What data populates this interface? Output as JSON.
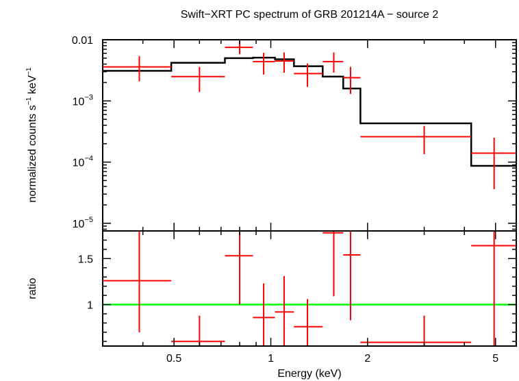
{
  "chart_data": [
    {
      "type": "scatter",
      "title": "Swift−XRT PC spectrum of GRB 201214A − source 2",
      "ylabel_parts": [
        "normalized counts s",
        "−1",
        " keV",
        "−1"
      ],
      "xscale": "log",
      "yscale": "log",
      "xlim": [
        0.3,
        5.8
      ],
      "ylim": [
        7.5e-06,
        0.01
      ],
      "y_ticks": [
        {
          "value": 0.01,
          "mantissa": "0.01",
          "exp": ""
        },
        {
          "value": 0.001,
          "mantissa": "10",
          "exp": "−3"
        },
        {
          "value": 0.0001,
          "mantissa": "10",
          "exp": "−4"
        },
        {
          "value": 1e-05,
          "mantissa": "10",
          "exp": "−5"
        }
      ],
      "series": [
        {
          "color": "#ff0000",
          "points": [
            {
              "x": 0.39,
              "xlo": 0.3,
              "xhi": 0.49,
              "y": 0.0036,
              "ylo": 0.0021,
              "yhi": 0.0054
            },
            {
              "x": 0.6,
              "xlo": 0.49,
              "xhi": 0.72,
              "y": 0.0025,
              "ylo": 0.0014,
              "yhi": 0.0036
            },
            {
              "x": 0.8,
              "xlo": 0.72,
              "xhi": 0.88,
              "y": 0.0075,
              "ylo": 0.0058,
              "yhi": 0.0095
            },
            {
              "x": 0.95,
              "xlo": 0.88,
              "xhi": 1.03,
              "y": 0.0044,
              "ylo": 0.0027,
              "yhi": 0.0061
            },
            {
              "x": 1.1,
              "xlo": 1.03,
              "xhi": 1.18,
              "y": 0.0045,
              "ylo": 0.0029,
              "yhi": 0.0062
            },
            {
              "x": 1.3,
              "xlo": 1.18,
              "xhi": 1.45,
              "y": 0.0028,
              "ylo": 0.0017,
              "yhi": 0.0041
            },
            {
              "x": 1.57,
              "xlo": 1.45,
              "xhi": 1.68,
              "y": 0.0044,
              "ylo": 0.0029,
              "yhi": 0.0062
            },
            {
              "x": 1.77,
              "xlo": 1.68,
              "xhi": 1.9,
              "y": 0.0024,
              "ylo": 0.0013,
              "yhi": 0.0036
            },
            {
              "x": 3.0,
              "xlo": 1.9,
              "xhi": 4.2,
              "y": 0.00026,
              "ylo": 0.000135,
              "yhi": 0.00039
            },
            {
              "x": 4.95,
              "xlo": 4.2,
              "xhi": 5.8,
              "y": 0.00014,
              "ylo": 3.6e-05,
              "yhi": 0.00025
            }
          ]
        },
        {
          "color": "#000000",
          "type": "step",
          "steps": [
            {
              "xlo": 0.3,
              "xhi": 0.49,
              "y": 0.0031
            },
            {
              "xlo": 0.49,
              "xhi": 0.72,
              "y": 0.0042
            },
            {
              "xlo": 0.72,
              "xhi": 0.88,
              "y": 0.005
            },
            {
              "xlo": 0.88,
              "xhi": 1.03,
              "y": 0.0051
            },
            {
              "xlo": 1.03,
              "xhi": 1.18,
              "y": 0.0048
            },
            {
              "xlo": 1.18,
              "xhi": 1.45,
              "y": 0.0037
            },
            {
              "xlo": 1.45,
              "xhi": 1.68,
              "y": 0.0025
            },
            {
              "xlo": 1.68,
              "xhi": 1.9,
              "y": 0.0016
            },
            {
              "xlo": 1.9,
              "xhi": 4.2,
              "y": 0.00043
            },
            {
              "xlo": 4.2,
              "xhi": 5.8,
              "y": 8.7e-05
            }
          ]
        }
      ]
    },
    {
      "type": "scatter",
      "xlabel": "Energy (keV)",
      "ylabel": "ratio",
      "xscale": "log",
      "xlim": [
        0.3,
        5.8
      ],
      "ylim": [
        0.55,
        1.8
      ],
      "x_ticks": [
        {
          "value": 0.5,
          "label": "0.5"
        },
        {
          "value": 1,
          "label": "1"
        },
        {
          "value": 2,
          "label": "2"
        },
        {
          "value": 5,
          "label": "5"
        }
      ],
      "y_ticks": [
        {
          "value": 1,
          "label": "1"
        },
        {
          "value": 1.5,
          "label": "1.5"
        }
      ],
      "reference_line": {
        "y": 1,
        "color": "#00ff00"
      },
      "series": [
        {
          "color": "#ff0000",
          "points": [
            {
              "x": 0.39,
              "xlo": 0.3,
              "xhi": 0.49,
              "y": 1.26,
              "ylo": 0.7,
              "yhi": 1.8
            },
            {
              "x": 0.6,
              "xlo": 0.49,
              "xhi": 0.72,
              "y": 0.6,
              "ylo": 0.55,
              "yhi": 0.88
            },
            {
              "x": 0.8,
              "xlo": 0.72,
              "xhi": 0.88,
              "y": 1.53,
              "ylo": 1.0,
              "yhi": 1.8
            },
            {
              "x": 0.95,
              "xlo": 0.88,
              "xhi": 1.03,
              "y": 0.86,
              "ylo": 0.55,
              "yhi": 1.23
            },
            {
              "x": 1.1,
              "xlo": 1.03,
              "xhi": 1.18,
              "y": 0.92,
              "ylo": 0.55,
              "yhi": 1.31
            },
            {
              "x": 1.3,
              "xlo": 1.18,
              "xhi": 1.45,
              "y": 0.76,
              "ylo": 0.55,
              "yhi": 1.06
            },
            {
              "x": 1.57,
              "xlo": 1.45,
              "xhi": 1.68,
              "y": 1.78,
              "ylo": 1.09,
              "yhi": 1.8
            },
            {
              "x": 1.77,
              "xlo": 1.68,
              "xhi": 1.9,
              "y": 1.54,
              "ylo": 0.83,
              "yhi": 1.8
            },
            {
              "x": 3.0,
              "xlo": 1.9,
              "xhi": 4.2,
              "y": 0.59,
              "ylo": 0.55,
              "yhi": 0.88
            },
            {
              "x": 4.95,
              "xlo": 4.2,
              "xhi": 5.8,
              "y": 1.64,
              "ylo": 0.55,
              "yhi": 1.8
            }
          ]
        }
      ]
    }
  ]
}
